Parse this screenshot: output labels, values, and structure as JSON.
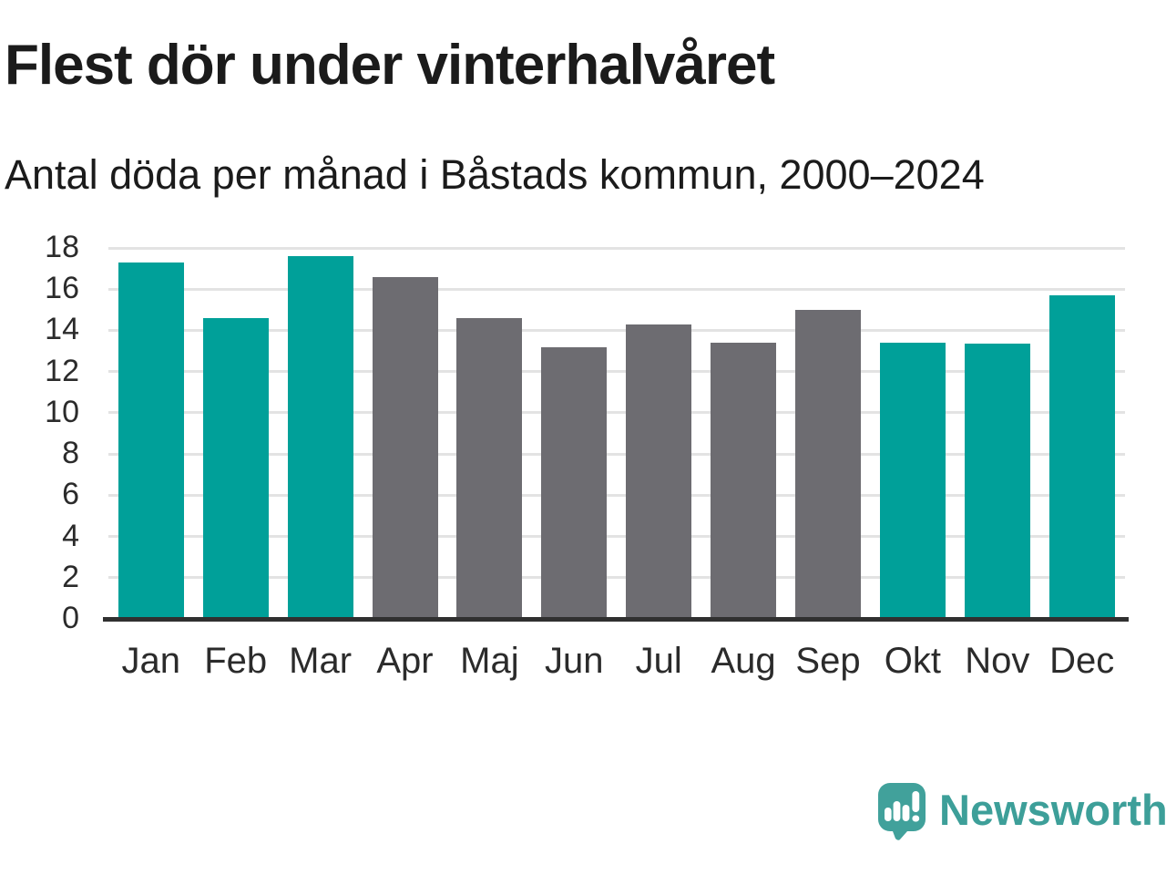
{
  "chart_data": {
    "type": "bar",
    "title": "Flest dör under vinterhalvåret",
    "subtitle": "Antal döda per månad i Båstads kommun, 2000–2024",
    "categories": [
      "Jan",
      "Feb",
      "Mar",
      "Apr",
      "Maj",
      "Jun",
      "Jul",
      "Aug",
      "Sep",
      "Okt",
      "Nov",
      "Dec"
    ],
    "values": [
      17.3,
      14.6,
      17.6,
      16.6,
      14.6,
      13.2,
      14.3,
      13.4,
      15.0,
      13.4,
      13.35,
      15.7
    ],
    "bar_color_keys": [
      "winter",
      "winter",
      "winter",
      "summer",
      "summer",
      "summer",
      "summer",
      "summer",
      "summer",
      "winter",
      "winter",
      "winter"
    ],
    "colors": {
      "winter": "#00a099",
      "summer": "#6d6c71"
    },
    "xlabel": "",
    "ylabel": "",
    "ylim": [
      0,
      18
    ],
    "yticks": [
      0,
      2,
      4,
      6,
      8,
      10,
      12,
      14,
      16,
      18
    ],
    "grid": "horizontal",
    "legend": "none",
    "gridline_color": "#e3e3e3",
    "axis_color": "#303030",
    "tick_text_color": "#2b2b2b"
  },
  "branding": {
    "logo_text": "Newsworthy",
    "logo_icon": "speech-bubble-with-bar-chart-and-exclamation",
    "logo_text_color": "#3d9f99",
    "logo_icon_color": "#41a19b"
  }
}
